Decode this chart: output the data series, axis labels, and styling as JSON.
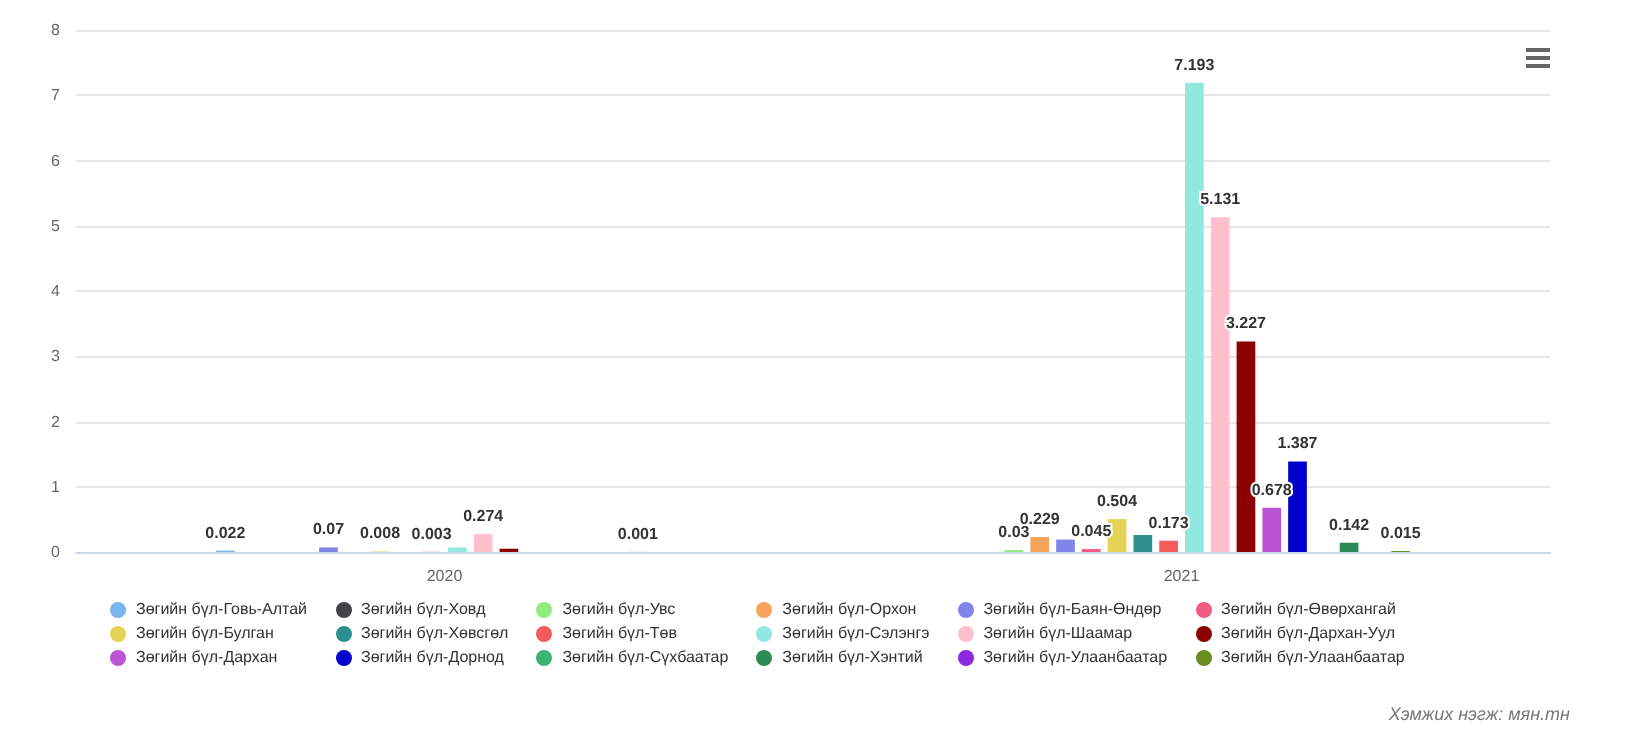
{
  "chart_data": {
    "type": "bar",
    "categories": [
      "2020",
      "2021"
    ],
    "ylim": [
      0,
      8
    ],
    "yticks": [
      0,
      1,
      2,
      3,
      4,
      5,
      6,
      7,
      8
    ],
    "grid": "y",
    "legend": "bottom",
    "annotations": [
      "Хэмжих нэгж: мян.тн"
    ],
    "series": [
      {
        "name": "Зөгийн бүл-Говь-Алтай",
        "color": "#7cb5ec",
        "values": [
          0.022,
          null
        ],
        "value_labels": [
          "0.022",
          null
        ]
      },
      {
        "name": "Зөгийн бүл-Ховд",
        "color": "#434348",
        "values": [
          null,
          null
        ],
        "value_labels": [
          null,
          null
        ]
      },
      {
        "name": "Зөгийн бүл-Увс",
        "color": "#90ed7d",
        "values": [
          null,
          0.03
        ],
        "value_labels": [
          null,
          "0.03"
        ]
      },
      {
        "name": "Зөгийн бүл-Орхон",
        "color": "#f7a35c",
        "values": [
          null,
          0.229
        ],
        "value_labels": [
          null,
          "0.229"
        ]
      },
      {
        "name": "Зөгийн бүл-Баян-Өндөр",
        "color": "#8085e9",
        "values": [
          0.07,
          0.19
        ],
        "value_labels": [
          "0.07",
          null
        ]
      },
      {
        "name": "Зөгийн бүл-Өвөрхангай",
        "color": "#f15c80",
        "values": [
          null,
          0.045
        ],
        "value_labels": [
          null,
          "0.045"
        ]
      },
      {
        "name": "Зөгийн бүл-Булган",
        "color": "#e4d354",
        "values": [
          0.008,
          0.504
        ],
        "value_labels": [
          "0.008",
          "0.504"
        ]
      },
      {
        "name": "Зөгийн бүл-Хөвсгөл",
        "color": "#2b908f",
        "values": [
          null,
          0.26
        ],
        "value_labels": [
          null,
          null
        ]
      },
      {
        "name": "Зөгийн бүл-Төв",
        "color": "#f45b5b",
        "values": [
          0.003,
          0.173
        ],
        "value_labels": [
          "0.003",
          "0.173"
        ]
      },
      {
        "name": "Зөгийн бүл-Сэлэнгэ",
        "color": "#91e8e1",
        "values": [
          0.07,
          7.193
        ],
        "value_labels": [
          null,
          "7.193"
        ]
      },
      {
        "name": "Зөгийн бүл-Шаамар",
        "color": "#ffc0cb",
        "values": [
          0.274,
          5.131
        ],
        "value_labels": [
          "0.274",
          "5.131"
        ]
      },
      {
        "name": "Зөгийн бүл-Дархан-Уул",
        "color": "#8b0000",
        "values": [
          0.05,
          3.227
        ],
        "value_labels": [
          null,
          "3.227"
        ]
      },
      {
        "name": "Зөгийн бүл-Дархан",
        "color": "#ba55d3",
        "values": [
          null,
          0.678
        ],
        "value_labels": [
          null,
          "0.678"
        ]
      },
      {
        "name": "Зөгийн бүл-Дорнод",
        "color": "#0000cd",
        "values": [
          null,
          1.387
        ],
        "value_labels": [
          null,
          "1.387"
        ]
      },
      {
        "name": "Зөгийн бүл-Сүхбаатар",
        "color": "#3cb371",
        "values": [
          null,
          null
        ],
        "value_labels": [
          null,
          null
        ]
      },
      {
        "name": "Зөгийн бүл-Хэнтий",
        "color": "#2e8b57",
        "values": [
          null,
          0.142
        ],
        "value_labels": [
          null,
          "0.142"
        ]
      },
      {
        "name": "Зөгийн бүл-Улаанбаатар",
        "color": "#8a2be2",
        "values": [
          0.001,
          null
        ],
        "value_labels": [
          "0.001",
          null
        ]
      },
      {
        "name": "Зөгийн бүл-Улаанбаатар",
        "color": "#6b8e23",
        "values": [
          null,
          0.015
        ],
        "value_labels": [
          null,
          "0.015"
        ]
      }
    ]
  }
}
